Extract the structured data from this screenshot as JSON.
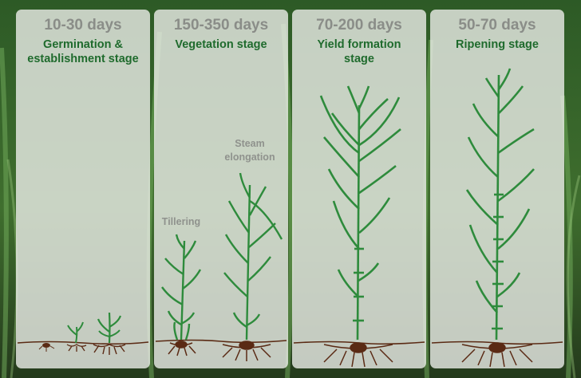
{
  "stages": [
    {
      "days": "10-30 days",
      "stage_lines": [
        "Germination &",
        "establishment stage"
      ]
    },
    {
      "days": "150-350 days",
      "stage_lines": [
        "Vegetation stage"
      ]
    },
    {
      "days": "70-200 days",
      "stage_lines": [
        "Yield formation",
        "stage"
      ]
    },
    {
      "days": "50-70 days",
      "stage_lines": [
        "Ripening stage"
      ]
    }
  ],
  "sub_labels": {
    "tillering": "Tillering",
    "steam_elongation_lines": [
      "Steam",
      "elongation"
    ]
  },
  "colors": {
    "plant_green": "#2e8b3c",
    "stage_text": "#1f6b2d",
    "days_text": "#8a8d88",
    "root_brown": "#5a2a14"
  }
}
